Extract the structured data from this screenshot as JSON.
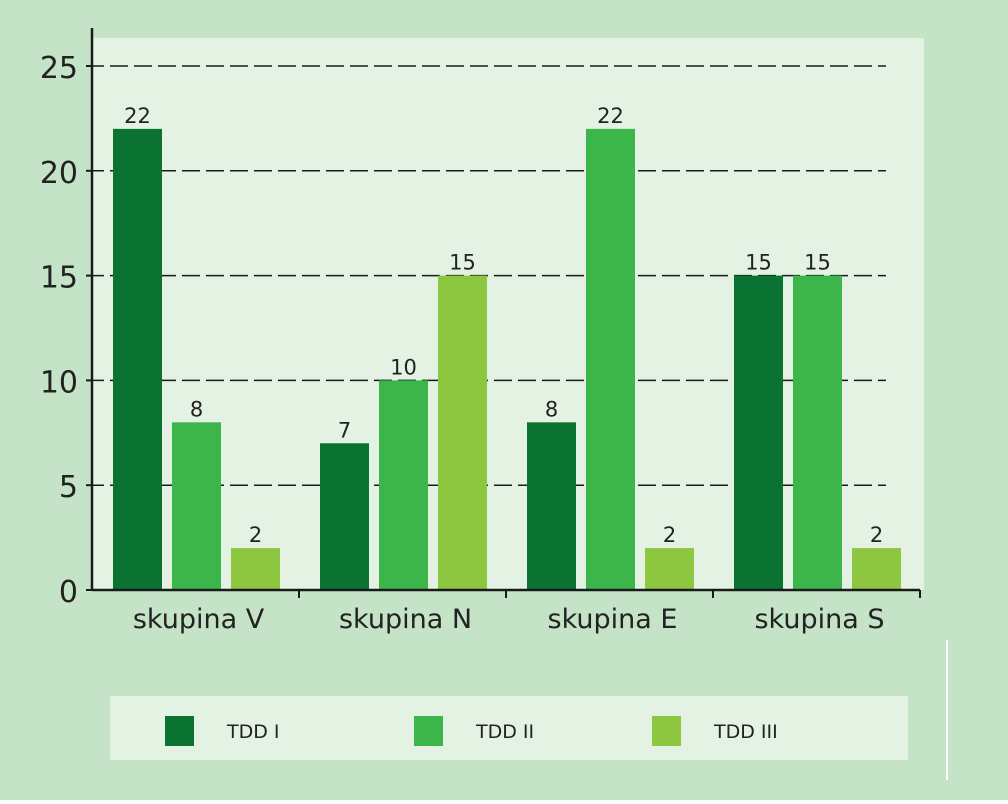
{
  "chart_data": {
    "type": "bar",
    "categories": [
      "skupina V",
      "skupina N",
      "skupina E",
      "skupina S"
    ],
    "series": [
      {
        "name": "TDD I",
        "color": "#0a7331",
        "values": [
          22,
          7,
          8,
          15
        ]
      },
      {
        "name": "TDD II",
        "color": "#3cb54a",
        "values": [
          8,
          10,
          22,
          15
        ]
      },
      {
        "name": "TDD III",
        "color": "#8dc63f",
        "values": [
          2,
          15,
          2,
          2
        ]
      }
    ],
    "data_labels": [
      [
        "22",
        "7",
        "8",
        "15"
      ],
      [
        "8",
        "10",
        "22",
        "15"
      ],
      [
        "2",
        "15",
        "2",
        "2"
      ]
    ],
    "y_ticks": [
      "0",
      "5",
      "10",
      "15",
      "20",
      "25"
    ],
    "ylim": [
      0,
      25
    ],
    "grid": true,
    "legend_position": "bottom",
    "title": "",
    "xlabel": "",
    "ylabel": ""
  },
  "colors": {
    "outer_background": "#c5e4c7",
    "plot_background": "#e3f2e2",
    "legend_background": "#e3f2e2",
    "axis": "#1a1a1a",
    "grid": "#1a1a1a"
  }
}
